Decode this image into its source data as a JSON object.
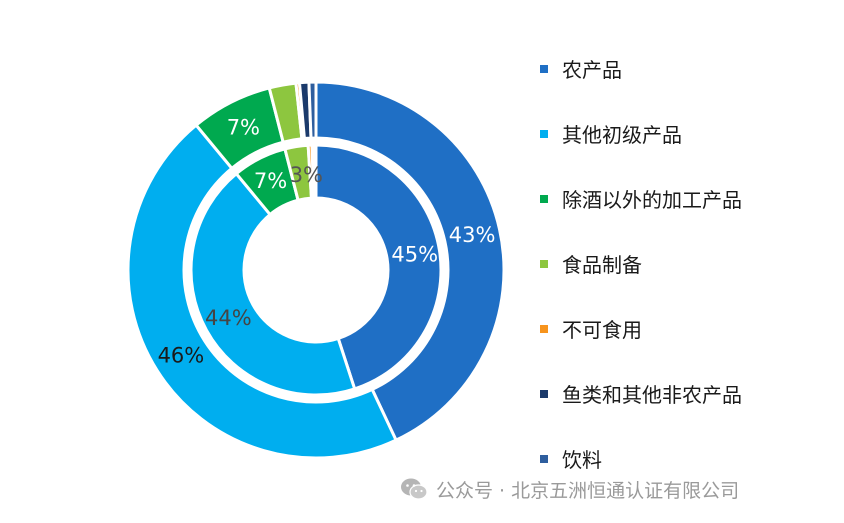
{
  "chart_data": {
    "type": "pie",
    "variant": "nested-donut",
    "legend_position": "right",
    "categories": [
      "农产品",
      "其他初级产品",
      "除酒以外的加工产品",
      "食品制备",
      "不可食用",
      "鱼类和其他非农产品",
      "饮料"
    ],
    "colors": [
      "#1F6FC5",
      "#00AEEF",
      "#00A94F",
      "#8DC63F",
      "#F7941D",
      "#1B3A6B",
      "#2E5E9E"
    ],
    "series": [
      {
        "ring": "outer",
        "values": [
          43,
          46,
          7,
          2.3,
          0.3,
          0.8,
          0.6
        ],
        "labels": [
          "43%",
          "46%",
          "7%",
          "",
          "",
          "",
          ""
        ]
      },
      {
        "ring": "inner",
        "values": [
          45,
          44,
          7,
          3,
          0.5,
          0.3,
          0.2
        ],
        "labels": [
          "45%",
          "44%",
          "7%",
          "3%",
          "",
          "",
          ""
        ]
      }
    ]
  },
  "watermark": {
    "icon": "wechat-icon",
    "text": "公众号 · 北京五洲恒通认证有限公司"
  }
}
